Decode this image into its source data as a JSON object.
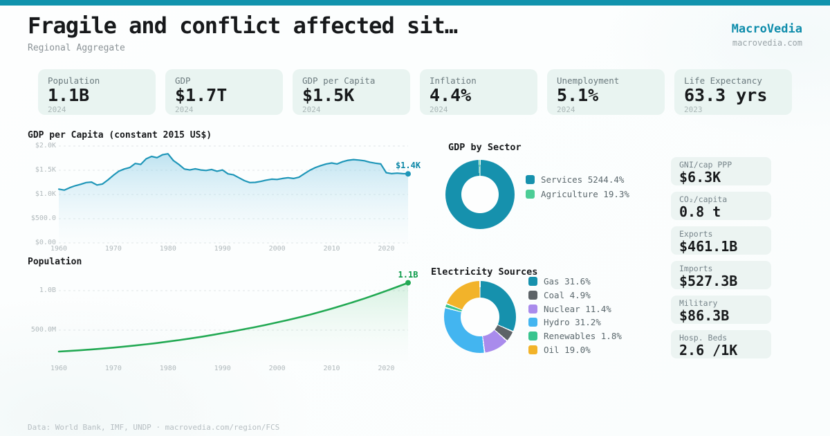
{
  "brand": {
    "name": "MacroVedia",
    "site": "macrovedia.com"
  },
  "header": {
    "title": "Fragile and conflict affected sit…",
    "subtitle": "Regional Aggregate"
  },
  "colors": {
    "accent": "#1193ad",
    "gdp_line": "#1e96b8",
    "pop_line": "#22a953"
  },
  "stats": [
    {
      "label": "Population",
      "value": "1.1B",
      "year": "2024"
    },
    {
      "label": "GDP",
      "value": "$1.7T",
      "year": "2024"
    },
    {
      "label": "GDP per Capita",
      "value": "$1.5K",
      "year": "2024"
    },
    {
      "label": "Inflation",
      "value": "4.4%",
      "year": "2024"
    },
    {
      "label": "Unemployment",
      "value": "5.1%",
      "year": "2024"
    },
    {
      "label": "Life Expectancy",
      "value": "63.3 yrs",
      "year": "2023"
    }
  ],
  "chart_data": [
    {
      "type": "line",
      "id": "gdp",
      "title": "GDP per Capita (constant 2015 US$)",
      "ylim": [
        0,
        2000
      ],
      "color": "#1e96b8",
      "area_from": "rgba(140,205,230,0.55)",
      "area_to": "rgba(222,242,248,0.05)",
      "label_color": "#0c87a7",
      "end_label": "$1.4K",
      "grid": true,
      "yticks": [
        {
          "value": 2000,
          "label": "$2.0K"
        },
        {
          "value": 1500,
          "label": "$1.5K"
        },
        {
          "value": 1000,
          "label": "$1.0K"
        },
        {
          "value": 500,
          "label": "$500.0"
        },
        {
          "value": 0,
          "label": "$0.00"
        }
      ],
      "xticks": [
        1960,
        1970,
        1980,
        1990,
        2000,
        2010,
        2020
      ],
      "x": [
        1960,
        1961,
        1962,
        1963,
        1964,
        1965,
        1966,
        1967,
        1968,
        1969,
        1970,
        1971,
        1972,
        1973,
        1974,
        1975,
        1976,
        1977,
        1978,
        1979,
        1980,
        1981,
        1982,
        1983,
        1984,
        1985,
        1986,
        1987,
        1988,
        1989,
        1990,
        1991,
        1992,
        1993,
        1994,
        1995,
        1996,
        1997,
        1998,
        1999,
        2000,
        2001,
        2002,
        2003,
        2004,
        2005,
        2006,
        2007,
        2008,
        2009,
        2010,
        2011,
        2012,
        2013,
        2014,
        2015,
        2016,
        2017,
        2018,
        2019,
        2020,
        2021,
        2022,
        2023,
        2024
      ],
      "values": [
        1110,
        1090,
        1140,
        1180,
        1210,
        1245,
        1255,
        1195,
        1215,
        1300,
        1395,
        1480,
        1525,
        1555,
        1640,
        1620,
        1735,
        1785,
        1760,
        1820,
        1840,
        1700,
        1620,
        1525,
        1505,
        1530,
        1505,
        1495,
        1515,
        1480,
        1505,
        1425,
        1405,
        1345,
        1285,
        1245,
        1250,
        1270,
        1295,
        1315,
        1310,
        1330,
        1345,
        1330,
        1355,
        1430,
        1500,
        1555,
        1595,
        1630,
        1650,
        1630,
        1675,
        1705,
        1720,
        1710,
        1695,
        1665,
        1645,
        1630,
        1450,
        1430,
        1440,
        1430,
        1425
      ]
    },
    {
      "type": "line",
      "id": "pop",
      "title": "Population",
      "ylim": [
        0,
        1220
      ],
      "color": "#22a953",
      "area_from": "rgba(64,190,110,0.20)",
      "area_to": "rgba(234,248,240,0.04)",
      "label_color": "#0a9a47",
      "end_label": "1.1B",
      "grid": true,
      "yticks": [
        {
          "value": 1000,
          "label": "1.0B"
        },
        {
          "value": 500,
          "label": "500.0M"
        }
      ],
      "xticks": [
        1960,
        1970,
        1980,
        1990,
        2000,
        2010,
        2020
      ],
      "x": [
        1960,
        1962,
        1964,
        1966,
        1968,
        1970,
        1972,
        1974,
        1976,
        1978,
        1980,
        1982,
        1984,
        1986,
        1988,
        1990,
        1992,
        1994,
        1996,
        1998,
        2000,
        2002,
        2004,
        2006,
        2008,
        2010,
        2012,
        2014,
        2016,
        2018,
        2020,
        2022,
        2024
      ],
      "values": [
        228,
        236,
        245,
        255,
        266,
        278,
        291,
        305,
        320,
        336,
        354,
        373,
        393,
        414,
        437,
        461,
        486,
        512,
        539,
        567,
        597,
        628,
        661,
        696,
        733,
        772,
        813,
        856,
        901,
        948,
        997,
        1048,
        1100
      ]
    },
    {
      "type": "donut",
      "id": "sector",
      "title": "GDP by Sector",
      "slices": [
        {
          "label": "Services",
          "pct": "5244.4%",
          "value": 5244.4,
          "color": "#1691ad"
        },
        {
          "label": "Agriculture",
          "pct": "19.3%",
          "value": 19.3,
          "color": "#4ccd96"
        }
      ]
    },
    {
      "type": "donut",
      "id": "electricity",
      "title": "Electricity Sources",
      "slices": [
        {
          "label": "Gas",
          "pct": "31.6%",
          "value": 31.6,
          "color": "#1691ad"
        },
        {
          "label": "Coal",
          "pct": "4.9%",
          "value": 4.9,
          "color": "#5d6367"
        },
        {
          "label": "Nuclear",
          "pct": "11.4%",
          "value": 11.4,
          "color": "#a98bec"
        },
        {
          "label": "Hydro",
          "pct": "31.2%",
          "value": 31.2,
          "color": "#43b5f0"
        },
        {
          "label": "Renewables",
          "pct": "1.8%",
          "value": 1.8,
          "color": "#38c48e"
        },
        {
          "label": "Oil",
          "pct": "19.0%",
          "value": 19.0,
          "color": "#f2b32a"
        }
      ]
    }
  ],
  "side_cards": [
    {
      "label": "GNI/cap PPP",
      "value": "$6.3K"
    },
    {
      "label": "CO₂/capita",
      "value": "0.8 t"
    },
    {
      "label": "Exports",
      "value": "$461.1B"
    },
    {
      "label": "Imports",
      "value": "$527.3B"
    },
    {
      "label": "Military",
      "value": "$86.3B"
    },
    {
      "label": "Hosp. Beds",
      "value": "2.6 /1K"
    }
  ],
  "footer": {
    "source": "Data: World Bank, IMF, UNDP · macrovedia.com/region/FCS"
  }
}
